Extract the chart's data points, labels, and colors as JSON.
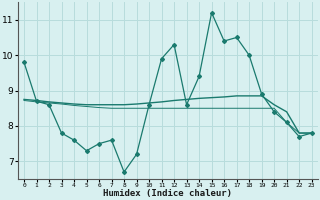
{
  "xlabel": "Humidex (Indice chaleur)",
  "x_values": [
    0,
    1,
    2,
    3,
    4,
    5,
    6,
    7,
    8,
    9,
    10,
    11,
    12,
    13,
    14,
    15,
    16,
    17,
    18,
    19,
    20,
    21,
    22,
    23
  ],
  "line1_y": [
    9.8,
    8.7,
    8.6,
    7.8,
    7.6,
    7.3,
    7.5,
    7.6,
    6.7,
    7.2,
    8.6,
    9.9,
    10.3,
    8.6,
    9.4,
    11.2,
    10.4,
    10.5,
    10.0,
    8.9,
    8.4,
    8.1,
    7.7,
    7.8
  ],
  "line2_y": [
    8.75,
    8.72,
    8.68,
    8.65,
    8.62,
    8.6,
    8.6,
    8.6,
    8.6,
    8.62,
    8.65,
    8.68,
    8.72,
    8.75,
    8.78,
    8.8,
    8.82,
    8.85,
    8.85,
    8.85,
    8.6,
    8.4,
    7.8,
    7.8
  ],
  "line3_y": [
    8.72,
    8.68,
    8.65,
    8.62,
    8.58,
    8.55,
    8.52,
    8.5,
    8.5,
    8.5,
    8.5,
    8.5,
    8.5,
    8.5,
    8.5,
    8.5,
    8.5,
    8.5,
    8.5,
    8.5,
    8.5,
    8.1,
    7.8,
    7.8
  ],
  "line_color": "#1a7a6e",
  "bg_color": "#d8f0f0",
  "grid_color": "#b8dcdc",
  "ylim": [
    6.5,
    11.5
  ],
  "yticks": [
    7,
    8,
    9,
    10,
    11
  ],
  "xlim": [
    -0.5,
    23.5
  ]
}
